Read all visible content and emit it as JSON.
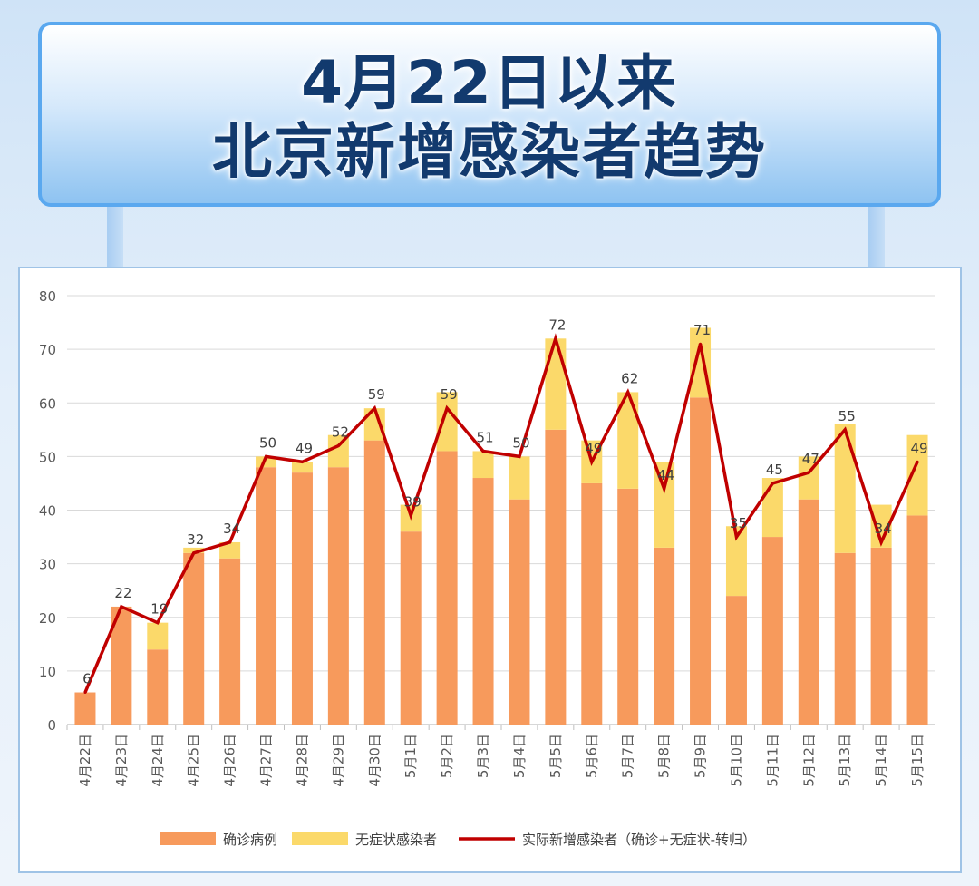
{
  "title": {
    "line1": "4月22日以来",
    "line2": "北京新增感染者趋势"
  },
  "colors": {
    "confirmed": "#f79a5c",
    "asymptomatic": "#fbd96a",
    "line": "#c00000",
    "grid": "#d9d9d9"
  },
  "chart_data": {
    "type": "bar",
    "stacked": true,
    "ylim": [
      0,
      80
    ],
    "yticks": [
      0,
      10,
      20,
      30,
      40,
      50,
      60,
      70,
      80
    ],
    "grid": true,
    "legend_position": "bottom",
    "categories": [
      "4月22日",
      "4月23日",
      "4月24日",
      "4月25日",
      "4月26日",
      "4月27日",
      "4月28日",
      "4月29日",
      "4月30日",
      "5月1日",
      "5月2日",
      "5月3日",
      "5月4日",
      "5月5日",
      "5月6日",
      "5月7日",
      "5月8日",
      "5月9日",
      "5月10日",
      "5月11日",
      "5月12日",
      "5月13日",
      "5月14日",
      "5月15日"
    ],
    "series": [
      {
        "name": "确诊病例",
        "kind": "bar",
        "values": [
          6,
          22,
          14,
          32,
          31,
          48,
          47,
          48,
          53,
          36,
          51,
          46,
          42,
          55,
          45,
          44,
          33,
          61,
          24,
          35,
          42,
          32,
          33,
          39
        ]
      },
      {
        "name": "无症状感染者",
        "kind": "bar",
        "values": [
          0,
          0,
          5,
          1,
          3,
          2,
          2,
          6,
          6,
          5,
          11,
          5,
          8,
          17,
          8,
          18,
          16,
          13,
          13,
          11,
          8,
          24,
          8,
          15
        ]
      },
      {
        "name": "实际新增感染者（确诊+无症状-转归）",
        "kind": "line",
        "values": [
          6,
          22,
          19,
          32,
          34,
          50,
          49,
          52,
          59,
          39,
          59,
          51,
          50,
          72,
          49,
          62,
          44,
          71,
          35,
          45,
          47,
          55,
          34,
          49
        ]
      }
    ]
  }
}
